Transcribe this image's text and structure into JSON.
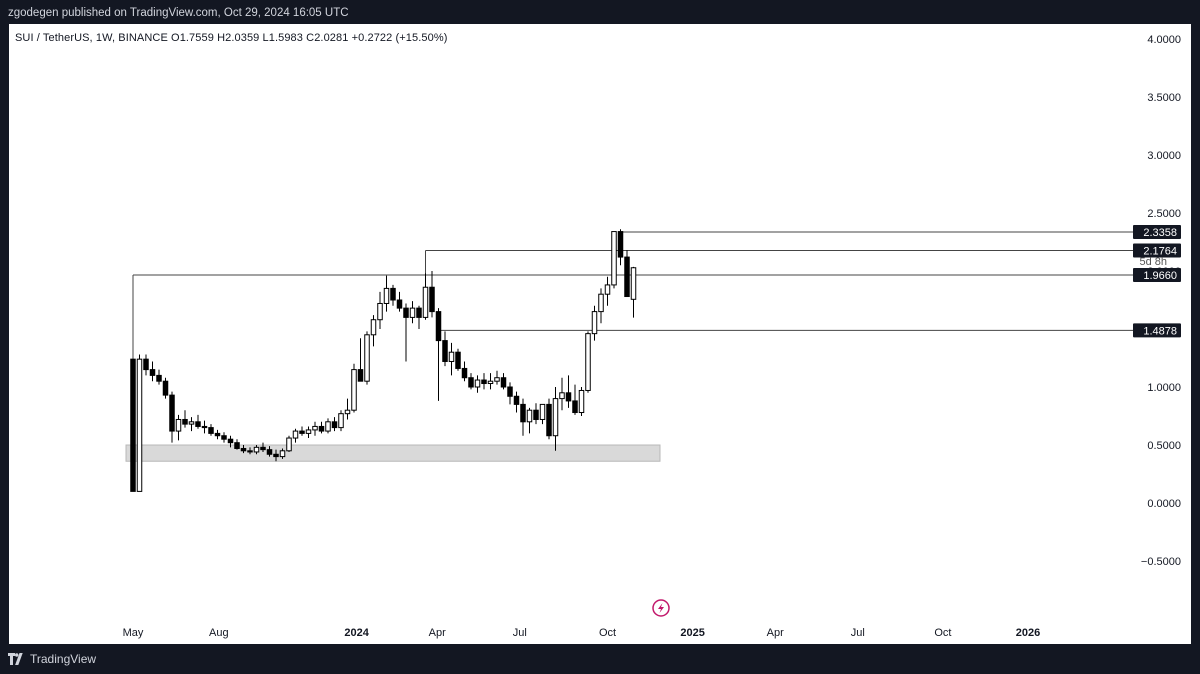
{
  "header": {
    "published": "zgodegen published on TradingView.com, Oct 29, 2024 16:05 UTC"
  },
  "legend": {
    "text": "SUI / TetherUS, 1W, BINANCE  O1.7559  H2.0359  L1.5983  C2.0281  +0.2722 (+15.50%)"
  },
  "footer": {
    "brand": "TradingView"
  },
  "icons": [
    "tradingview-logo-icon",
    "lightning-icon"
  ],
  "colors": {
    "up": "#ffffff",
    "down": "#000000",
    "zone": "#d9d9d9",
    "tag": "#131722"
  },
  "chart_data": {
    "type": "candlestick",
    "symbol": "SUI / TetherUS",
    "interval": "1W",
    "exchange": "BINANCE",
    "ohlc_last": {
      "open": 1.7559,
      "high": 2.0359,
      "low": 1.5983,
      "close": 2.0281,
      "change": 0.2722,
      "change_pct": "+15.50%"
    },
    "ylim": [
      -0.75,
      4.15
    ],
    "y_ticks": [
      "4.0000",
      "3.5000",
      "3.0000",
      "2.5000",
      "2.0000",
      "1.5000",
      "1.0000",
      "0.5000",
      "0.0000",
      "−0.5000"
    ],
    "y_tick_values": [
      4.0,
      3.5,
      3.0,
      2.5,
      2.0,
      1.5,
      1.0,
      0.5,
      0.0,
      -0.5
    ],
    "x_labels": [
      {
        "label": "May",
        "t": 0,
        "bold": false
      },
      {
        "label": "Aug",
        "t": 13.2,
        "bold": false
      },
      {
        "label": "2024",
        "t": 34.4,
        "bold": true
      },
      {
        "label": "Apr",
        "t": 46.8,
        "bold": false
      },
      {
        "label": "Jul",
        "t": 59.5,
        "bold": false
      },
      {
        "label": "Oct",
        "t": 73,
        "bold": false
      },
      {
        "label": "2025",
        "t": 86.1,
        "bold": true
      },
      {
        "label": "Apr",
        "t": 98.8,
        "bold": false
      },
      {
        "label": "Jul",
        "t": 111.5,
        "bold": false
      },
      {
        "label": "Oct",
        "t": 124.6,
        "bold": false
      },
      {
        "label": "2026",
        "t": 137.7,
        "bold": true
      }
    ],
    "candles": [
      [
        1.24,
        1.24,
        0.1,
        0.1
      ],
      [
        0.1,
        1.28,
        0.1,
        1.24
      ],
      [
        1.24,
        1.28,
        1.1,
        1.15
      ],
      [
        1.15,
        1.22,
        1.05,
        1.1
      ],
      [
        1.1,
        1.15,
        1.02,
        1.05
      ],
      [
        1.05,
        1.08,
        0.9,
        0.93
      ],
      [
        0.93,
        0.96,
        0.52,
        0.62
      ],
      [
        0.62,
        0.76,
        0.54,
        0.72
      ],
      [
        0.72,
        0.8,
        0.65,
        0.68
      ],
      [
        0.68,
        0.74,
        0.62,
        0.7
      ],
      [
        0.7,
        0.76,
        0.64,
        0.66
      ],
      [
        0.66,
        0.71,
        0.6,
        0.65
      ],
      [
        0.65,
        0.68,
        0.58,
        0.6
      ],
      [
        0.6,
        0.63,
        0.55,
        0.58
      ],
      [
        0.58,
        0.61,
        0.52,
        0.55
      ],
      [
        0.55,
        0.58,
        0.48,
        0.52
      ],
      [
        0.52,
        0.55,
        0.46,
        0.47
      ],
      [
        0.47,
        0.5,
        0.43,
        0.45
      ],
      [
        0.45,
        0.48,
        0.42,
        0.44
      ],
      [
        0.44,
        0.5,
        0.42,
        0.48
      ],
      [
        0.48,
        0.52,
        0.44,
        0.46
      ],
      [
        0.46,
        0.49,
        0.4,
        0.42
      ],
      [
        0.42,
        0.46,
        0.36,
        0.4
      ],
      [
        0.4,
        0.47,
        0.38,
        0.45
      ],
      [
        0.45,
        0.58,
        0.44,
        0.56
      ],
      [
        0.56,
        0.64,
        0.52,
        0.62
      ],
      [
        0.62,
        0.66,
        0.58,
        0.6
      ],
      [
        0.6,
        0.66,
        0.56,
        0.63
      ],
      [
        0.63,
        0.7,
        0.58,
        0.66
      ],
      [
        0.66,
        0.7,
        0.6,
        0.62
      ],
      [
        0.62,
        0.73,
        0.6,
        0.7
      ],
      [
        0.7,
        0.74,
        0.62,
        0.65
      ],
      [
        0.65,
        0.8,
        0.62,
        0.77
      ],
      [
        0.77,
        0.9,
        0.72,
        0.8
      ],
      [
        0.8,
        1.2,
        0.78,
        1.15
      ],
      [
        1.15,
        1.42,
        1.05,
        1.05
      ],
      [
        1.05,
        1.48,
        1.02,
        1.45
      ],
      [
        1.45,
        1.62,
        1.35,
        1.58
      ],
      [
        1.58,
        1.82,
        1.5,
        1.72
      ],
      [
        1.72,
        1.96,
        1.65,
        1.85
      ],
      [
        1.85,
        1.88,
        1.7,
        1.75
      ],
      [
        1.75,
        1.82,
        1.65,
        1.68
      ],
      [
        1.68,
        1.72,
        1.22,
        1.6
      ],
      [
        1.6,
        1.74,
        1.55,
        1.68
      ],
      [
        1.68,
        1.7,
        1.5,
        1.6
      ],
      [
        1.6,
        1.98,
        1.58,
        1.86
      ],
      [
        1.86,
        2.0,
        1.6,
        1.65
      ],
      [
        1.65,
        1.68,
        0.88,
        1.4
      ],
      [
        1.4,
        1.48,
        1.18,
        1.22
      ],
      [
        1.22,
        1.38,
        1.1,
        1.3
      ],
      [
        1.3,
        1.33,
        1.14,
        1.16
      ],
      [
        1.16,
        1.22,
        1.05,
        1.08
      ],
      [
        1.08,
        1.12,
        0.98,
        1.0
      ],
      [
        1.0,
        1.1,
        0.95,
        1.06
      ],
      [
        1.06,
        1.12,
        0.98,
        1.03
      ],
      [
        1.03,
        1.12,
        0.98,
        1.05
      ],
      [
        1.05,
        1.14,
        1.02,
        1.08
      ],
      [
        1.08,
        1.12,
        0.98,
        1.0
      ],
      [
        1.0,
        1.04,
        0.85,
        0.92
      ],
      [
        0.92,
        0.96,
        0.78,
        0.85
      ],
      [
        0.85,
        0.9,
        0.58,
        0.7
      ],
      [
        0.7,
        0.82,
        0.6,
        0.8
      ],
      [
        0.8,
        0.86,
        0.68,
        0.72
      ],
      [
        0.72,
        0.85,
        0.68,
        0.85
      ],
      [
        0.85,
        0.9,
        0.55,
        0.58
      ],
      [
        0.58,
        1.0,
        0.45,
        0.9
      ],
      [
        0.9,
        1.08,
        0.8,
        0.95
      ],
      [
        0.95,
        1.1,
        0.82,
        0.88
      ],
      [
        0.88,
        1.02,
        0.76,
        0.78
      ],
      [
        0.78,
        1.0,
        0.75,
        0.97
      ],
      [
        0.97,
        1.48,
        0.95,
        1.46
      ],
      [
        1.46,
        1.7,
        1.4,
        1.65
      ],
      [
        1.65,
        1.85,
        1.55,
        1.8
      ],
      [
        1.8,
        1.95,
        1.7,
        1.88
      ],
      [
        1.88,
        2.34,
        1.85,
        2.34
      ],
      [
        2.34,
        2.36,
        2.05,
        2.12
      ],
      [
        2.12,
        2.18,
        1.8,
        1.78
      ],
      [
        1.7559,
        2.0359,
        1.5983,
        2.0281
      ]
    ],
    "levels": [
      {
        "label": "2.3358",
        "value": 2.3358,
        "from_t": 75
      },
      {
        "label": "2.1764",
        "value": 2.1764,
        "from_t": 45
      },
      {
        "label": "1.9660",
        "value": 1.966,
        "from_t": 0
      },
      {
        "label": "1.4878",
        "value": 1.4878,
        "from_t": 47
      }
    ],
    "support_zone": {
      "low": 0.36,
      "high": 0.5,
      "from_t": 0,
      "to_t": 80
    },
    "countdown": "5d 8h"
  }
}
